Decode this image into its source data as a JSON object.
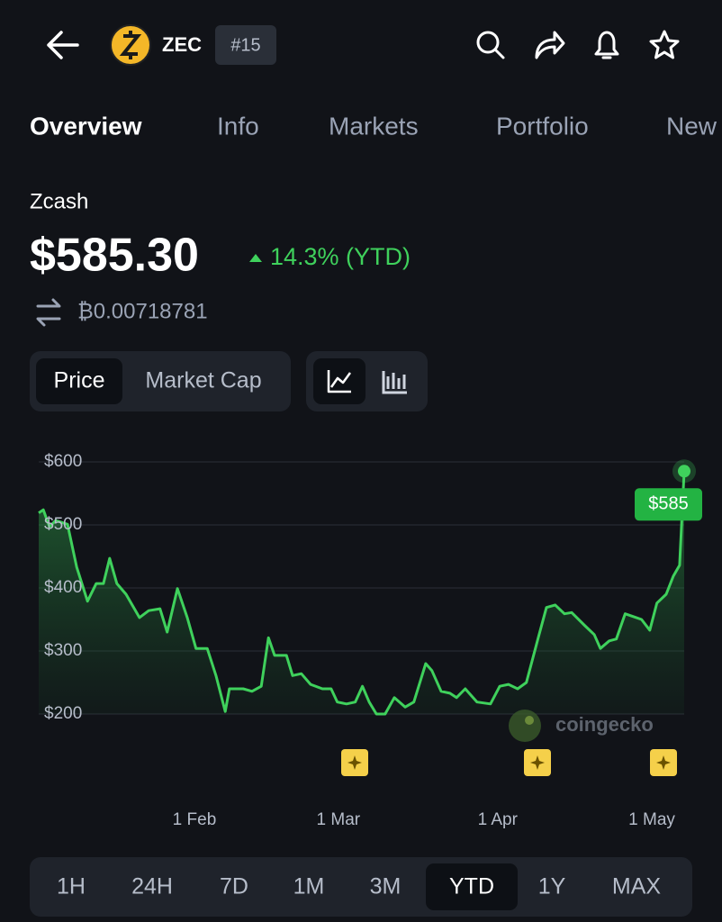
{
  "header": {
    "symbol": "ZEC",
    "rank": "#15"
  },
  "tabs": [
    "Overview",
    "Info",
    "Markets",
    "Portfolio",
    "New"
  ],
  "selected_tab": 0,
  "coin": {
    "name": "Zcash",
    "price": "$585.30",
    "change": "14.3% (YTD)",
    "btc_price": "₿0.00718781"
  },
  "chart_modes": [
    "Price",
    "Market Cap"
  ],
  "chart_data": {
    "type": "line",
    "color": "#3fd15c",
    "x": [
      0.7,
      1.6,
      2.8,
      4.0,
      6.3,
      8.1,
      10.2,
      11.9,
      13.3,
      14.5,
      15.9,
      17.7,
      20.3,
      22.1,
      24.3,
      25.7,
      27.7,
      29.6,
      31.3,
      33.5,
      35.2,
      37.0,
      37.8,
      40.5,
      42.2,
      44.0,
      45.4,
      46.6,
      48.9,
      50.1,
      51.8,
      53.6,
      55.9,
      57.6,
      58.8,
      60.6,
      62.3,
      63.7,
      65.0,
      66.4,
      68.1,
      69.9,
      72.0,
      73.7,
      76.0,
      77.2,
      79.0,
      80.7,
      82.0,
      83.7,
      86.0,
      88.6,
      90.4,
      92.1,
      93.9,
      95.6,
      97.9,
      99.5,
      101.2,
      103.0,
      104.4,
      107.0,
      108.8,
      110.0,
      111.7,
      113.1,
      114.8,
      116.6,
      118.0,
      119.6,
      121.0,
      122.8,
      124.2,
      125.4,
      126.3
    ],
    "values": [
      519,
      524,
      497,
      507,
      501,
      433,
      379,
      407,
      407,
      447,
      407,
      390,
      353,
      364,
      367,
      330,
      399,
      353,
      304,
      304,
      261,
      204,
      240,
      240,
      236,
      244,
      321,
      293,
      293,
      261,
      264,
      247,
      240,
      240,
      219,
      216,
      219,
      244,
      219,
      200,
      200,
      226,
      211,
      219,
      280,
      269,
      236,
      233,
      226,
      240,
      219,
      216,
      244,
      247,
      240,
      250,
      321,
      369,
      373,
      359,
      361,
      340,
      326,
      304,
      316,
      319,
      359,
      354,
      350,
      333,
      376,
      390,
      419,
      436,
      585.3
    ],
    "annotation": "$585",
    "xlim": [
      0.7,
      126.3
    ],
    "ylim": [
      200,
      600
    ],
    "xticks": [
      {
        "value": 31,
        "label": "1 Feb"
      },
      {
        "value": 59,
        "label": "1 Mar"
      },
      {
        "value": 90,
        "label": "1 Apr"
      },
      {
        "value": 120,
        "label": "1 May"
      }
    ],
    "yticks": [
      {
        "value": 200,
        "label": "$200"
      },
      {
        "value": 300,
        "label": "$300"
      },
      {
        "value": 400,
        "label": "$400"
      },
      {
        "value": 500,
        "label": "$500"
      },
      {
        "value": 600,
        "label": "$600"
      }
    ],
    "grid": true
  },
  "watermark": "coingecko",
  "ranges": [
    "1H",
    "24H",
    "7D",
    "1M",
    "3M",
    "YTD",
    "1Y",
    "MAX"
  ],
  "selected_range": 5
}
